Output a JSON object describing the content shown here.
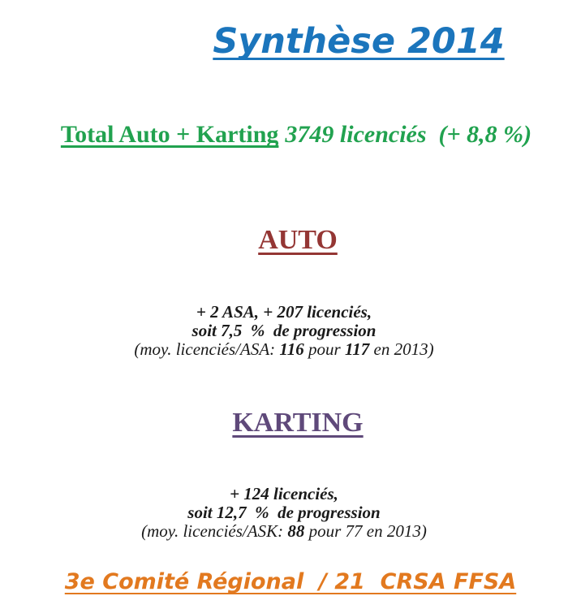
{
  "slide": {
    "title": "Synthèse 2014",
    "total": {
      "label": "Total Auto + Karting",
      "value": "3749 licenciés  (+ 8,8 %)"
    },
    "auto": {
      "heading": "AUTO",
      "line1": "+ 2 ASA, + 207 licenciés,",
      "line2": "soit 7,5  %  de progression",
      "avg": {
        "prefix": "(moy. licenciés/ASA: ",
        "value_2014": "116",
        "mid": " pour ",
        "value_2013": "117",
        "suffix": " en 2013)"
      }
    },
    "karting": {
      "heading": "KARTING",
      "line1": "+ 124 licenciés,",
      "line2": "soit 12,7  %  de progression",
      "avg": {
        "prefix": "(moy. licenciés/ASK: ",
        "value_2014": "88",
        "suffix": " pour 77 en 2013)"
      }
    },
    "footer": "3e Comité Régional  / 21  CRSA FFSA",
    "colors": {
      "title_blue": "#1B75BC",
      "green": "#21A24F",
      "dark_red": "#943634",
      "purple": "#5F497A",
      "orange": "#E2791F",
      "text_black": "#1A1A1A"
    }
  }
}
